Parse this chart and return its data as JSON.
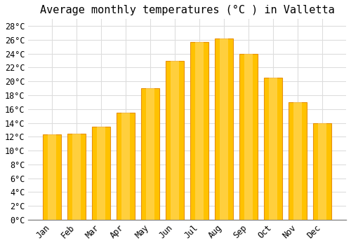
{
  "title": "Average monthly temperatures (°C ) in Valletta",
  "months": [
    "Jan",
    "Feb",
    "Mar",
    "Apr",
    "May",
    "Jun",
    "Jul",
    "Aug",
    "Sep",
    "Oct",
    "Nov",
    "Dec"
  ],
  "temperatures": [
    12.3,
    12.4,
    13.4,
    15.5,
    19.0,
    23.0,
    25.7,
    26.2,
    24.0,
    20.5,
    17.0,
    14.0
  ],
  "bar_color_main": "#FFC200",
  "bar_color_edge": "#E8900A",
  "background_color": "#FFFFFF",
  "grid_color": "#DDDDDD",
  "ylim": [
    0,
    29
  ],
  "ytick_step": 2,
  "title_fontsize": 11,
  "tick_fontsize": 8.5,
  "font_family": "monospace"
}
